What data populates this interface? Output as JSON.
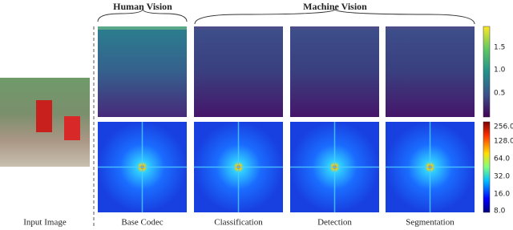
{
  "header": {
    "groups": [
      "Human Vision",
      "Machine Vision"
    ]
  },
  "input": {
    "label": "Input Image"
  },
  "columns": [
    "Base Codec",
    "Classification",
    "Detection",
    "Segmentation"
  ],
  "colorbars": {
    "top": [
      "1.5",
      "1.0",
      "0.5"
    ],
    "bottom": [
      "256.0",
      "128.0",
      "64.0",
      "32.0",
      "16.0",
      "8.0"
    ]
  }
}
